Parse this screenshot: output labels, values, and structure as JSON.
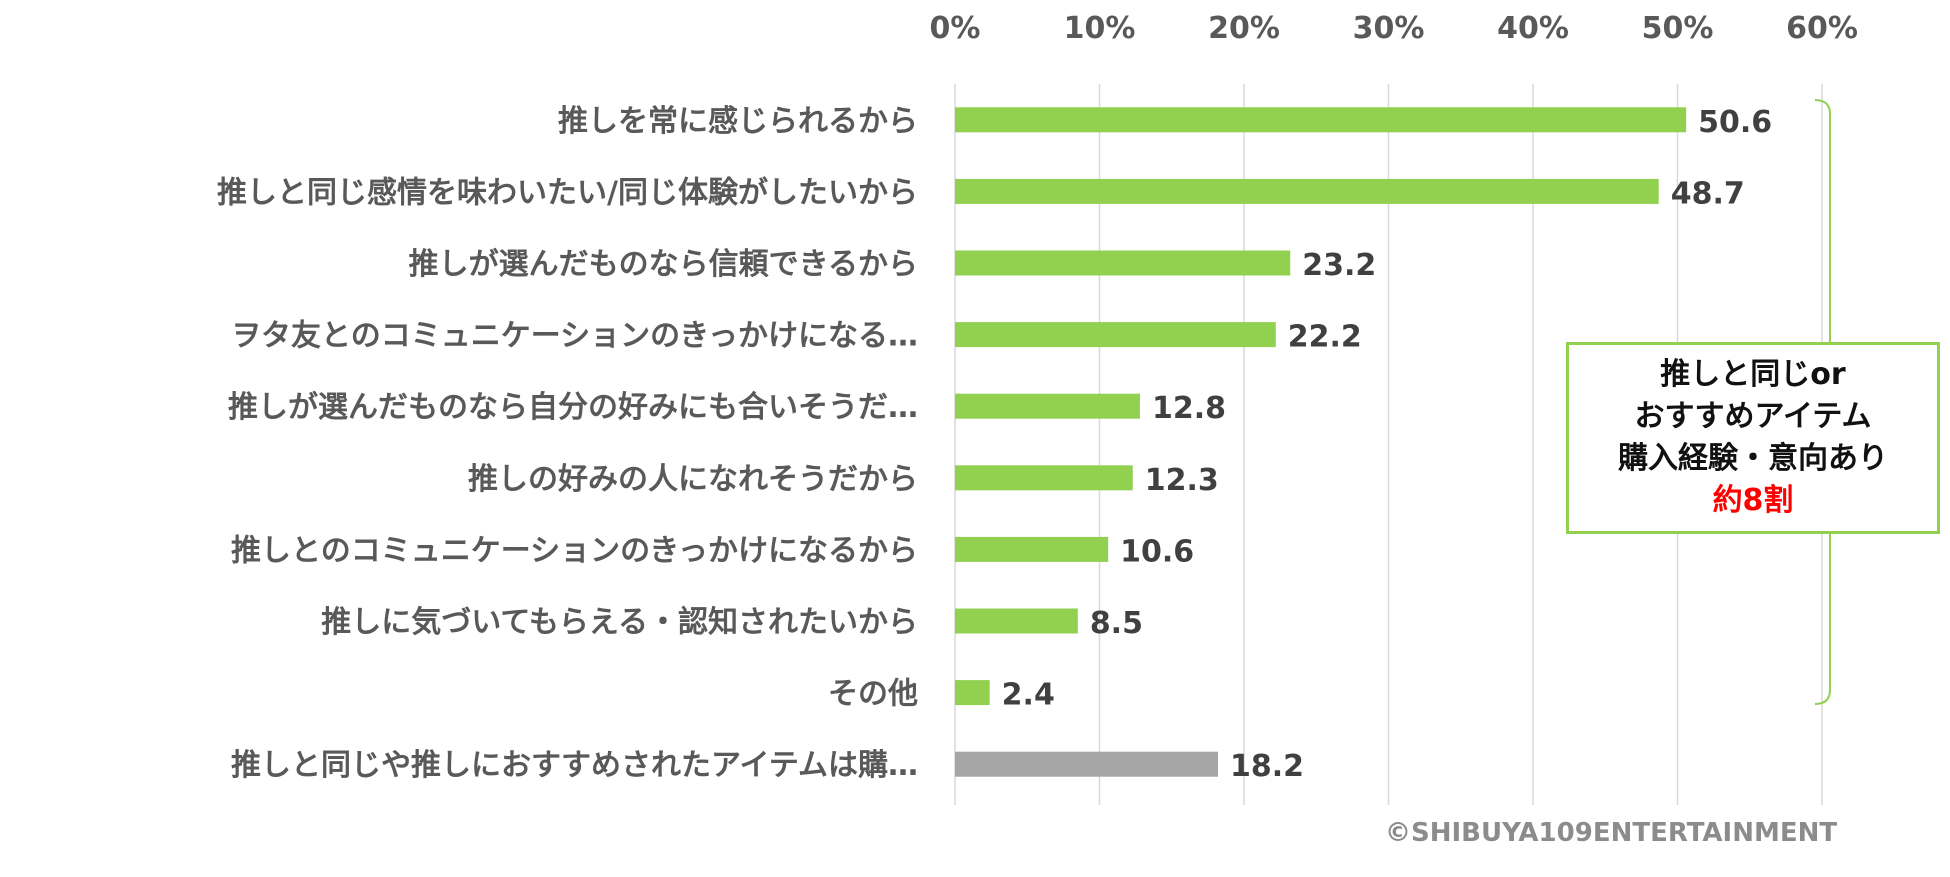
{
  "chart_data": {
    "type": "bar",
    "orientation": "horizontal",
    "x_axis": {
      "ticks": [
        "0%",
        "10%",
        "20%",
        "30%",
        "40%",
        "50%",
        "60%"
      ],
      "range": [
        0,
        60
      ],
      "position": "top",
      "grid": true
    },
    "categories": [
      "推しを常に感じられるから",
      "推しと同じ感情を味わいたい/同じ体験がしたいから",
      "推しが選んだものなら信頼できるから",
      "ヲタ友とのコミュニケーションのきっかけになる…",
      "推しが選んだものなら自分の好みにも合いそうだ…",
      "推しの好みの人になれそうだから",
      "推しとのコミュニケーションのきっかけになるから",
      "推しに気づいてもらえる・認知されたいから",
      "その他",
      "推しと同じや推しにおすすめされたアイテムは購…"
    ],
    "values": [
      50.6,
      48.7,
      23.2,
      22.2,
      12.8,
      12.3,
      10.6,
      8.5,
      2.4,
      18.2
    ],
    "value_labels": [
      "50.6",
      "48.7",
      "23.2",
      "22.2",
      "12.8",
      "12.3",
      "10.6",
      "8.5",
      "2.4",
      "18.2"
    ],
    "bar_colors": [
      "#92d050",
      "#92d050",
      "#92d050",
      "#92d050",
      "#92d050",
      "#92d050",
      "#92d050",
      "#92d050",
      "#92d050",
      "#a6a6a6"
    ],
    "legend": "none"
  },
  "callout": {
    "lines": [
      "推しと同じor",
      "おすすめアイテム",
      "購入経験・意向あり"
    ],
    "highlight": "約8割",
    "border_color": "#92d050",
    "highlight_color": "#ff0000",
    "bracket_color": "#92d050"
  },
  "copyright": "©SHIBUYA109ENTERTAINMENT"
}
